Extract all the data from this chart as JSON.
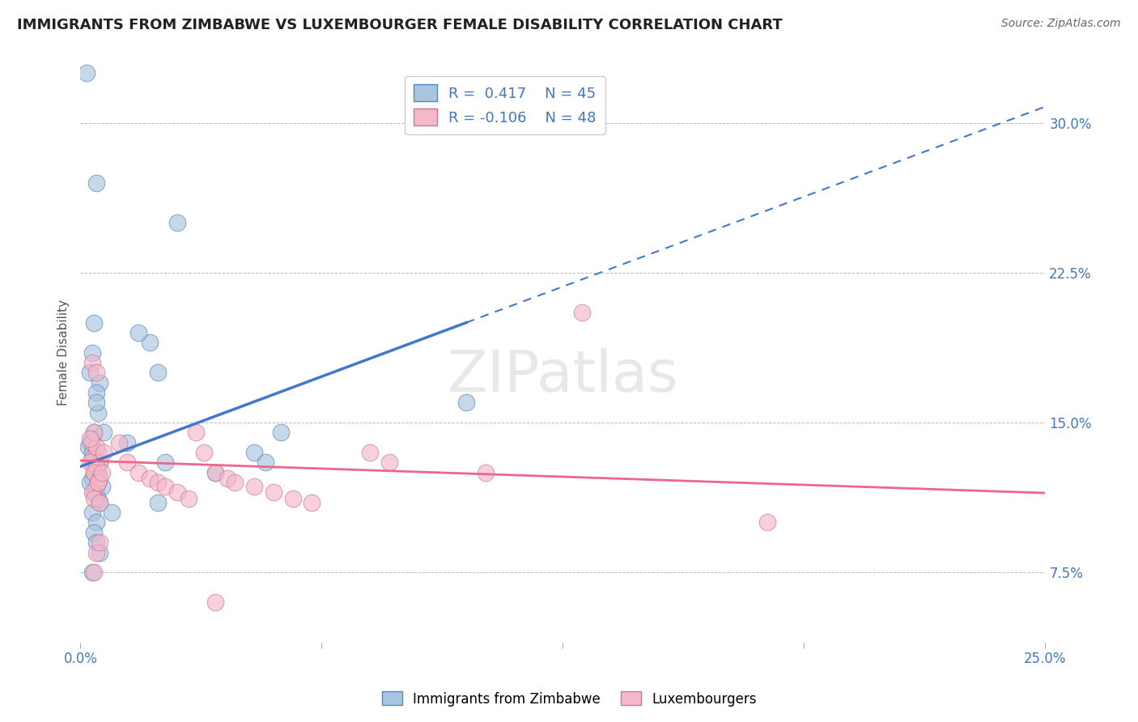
{
  "title": "IMMIGRANTS FROM ZIMBABWE VS LUXEMBOURGER FEMALE DISABILITY CORRELATION CHART",
  "source": "Source: ZipAtlas.com",
  "ylabel_label": "Female Disability",
  "xlim": [
    0.0,
    25.0
  ],
  "ylim": [
    4.0,
    33.0
  ],
  "yticks": [
    7.5,
    15.0,
    22.5,
    30.0
  ],
  "xticks": [
    0.0,
    25.0
  ],
  "blue_R": 0.417,
  "blue_N": 45,
  "pink_R": -0.106,
  "pink_N": 48,
  "blue_fill_color": "#A8C4E0",
  "blue_edge_color": "#5588BB",
  "pink_fill_color": "#F4B8C8",
  "pink_edge_color": "#CC7799",
  "blue_line_color": "#4477CC",
  "pink_line_color": "#EE6688",
  "blue_line_intercept": 12.8,
  "blue_line_slope": 0.72,
  "pink_line_intercept": 13.1,
  "pink_line_slope": -0.065,
  "blue_scatter_x": [
    0.15,
    2.5,
    0.4,
    0.35,
    0.3,
    0.25,
    0.5,
    0.4,
    0.45,
    0.35,
    0.3,
    0.25,
    0.2,
    0.3,
    0.35,
    0.5,
    0.4,
    0.45,
    0.3,
    0.25,
    0.55,
    0.6,
    0.4,
    0.3,
    0.35,
    0.45,
    0.5,
    0.3,
    0.4,
    0.35,
    1.8,
    2.0,
    1.5,
    2.2,
    1.2,
    4.5,
    4.8,
    3.5,
    10.0,
    0.4,
    0.3,
    0.5,
    2.0,
    0.8,
    5.2
  ],
  "blue_scatter_y": [
    32.5,
    25.0,
    27.0,
    20.0,
    18.5,
    17.5,
    17.0,
    16.5,
    15.5,
    14.5,
    14.2,
    14.0,
    13.8,
    13.5,
    13.2,
    13.0,
    12.8,
    12.5,
    12.2,
    12.0,
    11.8,
    14.5,
    16.0,
    13.0,
    11.5,
    11.2,
    11.0,
    10.5,
    10.0,
    9.5,
    19.0,
    17.5,
    19.5,
    13.0,
    14.0,
    13.5,
    13.0,
    12.5,
    16.0,
    9.0,
    7.5,
    8.5,
    11.0,
    10.5,
    14.5
  ],
  "pink_scatter_x": [
    0.3,
    0.4,
    0.5,
    0.35,
    0.45,
    0.4,
    0.3,
    0.35,
    0.5,
    0.45,
    0.3,
    0.25,
    0.4,
    0.35,
    0.5,
    0.45,
    0.3,
    0.4,
    0.35,
    0.25,
    0.55,
    0.6,
    1.0,
    1.2,
    1.5,
    1.8,
    2.0,
    2.2,
    2.5,
    2.8,
    3.0,
    3.2,
    3.5,
    3.8,
    4.0,
    4.5,
    5.0,
    5.5,
    6.0,
    7.5,
    8.0,
    10.5,
    13.0,
    17.8,
    0.4,
    0.5,
    0.35,
    3.5
  ],
  "pink_scatter_y": [
    18.0,
    17.5,
    13.0,
    12.5,
    12.0,
    11.8,
    11.5,
    11.2,
    11.0,
    13.5,
    13.2,
    13.0,
    12.8,
    12.5,
    12.2,
    12.0,
    14.0,
    13.8,
    14.5,
    14.2,
    12.5,
    13.5,
    14.0,
    13.0,
    12.5,
    12.2,
    12.0,
    11.8,
    11.5,
    11.2,
    14.5,
    13.5,
    12.5,
    12.2,
    12.0,
    11.8,
    11.5,
    11.2,
    11.0,
    13.5,
    13.0,
    12.5,
    20.5,
    10.0,
    8.5,
    9.0,
    7.5,
    6.0
  ]
}
